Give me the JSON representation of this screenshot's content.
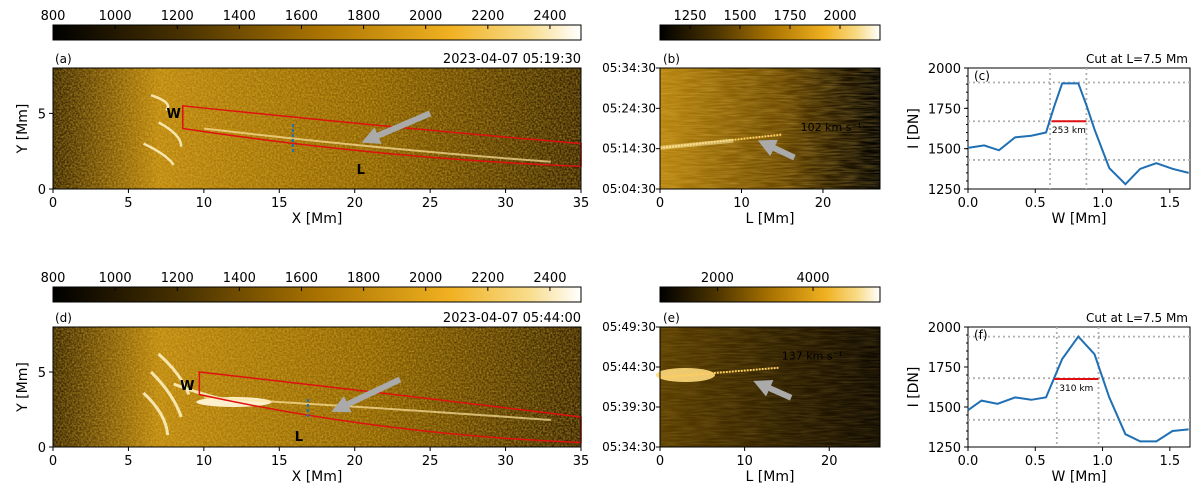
{
  "colors": {
    "red": "#e01010",
    "blue": "#1f6fb4",
    "arrow": "#aaaaaa",
    "grid": "#b0b0b0",
    "frame": "#000000"
  },
  "chart_data": [
    {
      "type": "heatmap",
      "panel": "a",
      "label": "(a)",
      "timestamp": "2023-04-07  05:19:30",
      "colorbar": {
        "ticks": [
          800,
          1000,
          1200,
          1400,
          1600,
          1800,
          2000,
          2200,
          2400
        ],
        "range": [
          800,
          2500
        ]
      },
      "xlabel": "X [Mm]",
      "ylabel": "Y [Mm]",
      "xlim": [
        0,
        35
      ],
      "ylim": [
        0,
        8
      ],
      "xticks": [
        0,
        5,
        10,
        15,
        20,
        25,
        30,
        35
      ],
      "yticks": [
        0,
        5
      ],
      "markers": {
        "w": "W",
        "l": "L"
      }
    },
    {
      "type": "heatmap",
      "panel": "b",
      "label": "(b)",
      "colorbar": {
        "ticks": [
          1250,
          1500,
          1750,
          2000
        ],
        "range": [
          1100,
          2200
        ]
      },
      "xlabel": "L [Mm]",
      "xlim": [
        0,
        27
      ],
      "xticks": [
        0,
        10,
        20
      ],
      "yticks": [
        "05:04:30",
        "05:14:30",
        "05:24:30",
        "05:34:30"
      ],
      "speed_label": "102 km s⁻¹"
    },
    {
      "type": "line",
      "panel": "c",
      "label": "(c)",
      "title": "Cut at L=7.5 Mm",
      "xlabel": "W [Mm]",
      "ylabel": "I [DN]",
      "xlim": [
        0,
        1.65
      ],
      "ylim": [
        1250,
        2000
      ],
      "xticks": [
        "0.0",
        "0.5",
        "1.0",
        "1.5"
      ],
      "yticks": [
        1250,
        1500,
        1750,
        2000
      ],
      "x": [
        0,
        0.12,
        0.23,
        0.35,
        0.47,
        0.58,
        0.64,
        0.7,
        0.82,
        0.88,
        0.94,
        1.05,
        1.17,
        1.28,
        1.4,
        1.52,
        1.64
      ],
      "y": [
        1505,
        1520,
        1490,
        1570,
        1580,
        1600,
        1760,
        1905,
        1905,
        1770,
        1620,
        1380,
        1280,
        1375,
        1410,
        1375,
        1350
      ],
      "fwhm_label": "253 km",
      "fwhm_level": 1670,
      "fwhm_x": [
        0.62,
        0.88
      ],
      "hlines": [
        1430,
        1670,
        1910
      ],
      "vlines": [
        0.61,
        0.88
      ]
    },
    {
      "type": "heatmap",
      "panel": "d",
      "label": "(d)",
      "timestamp": "2023-04-07  05:44:00",
      "colorbar": {
        "ticks": [
          800,
          1000,
          1200,
          1400,
          1600,
          1800,
          2000,
          2200,
          2400
        ],
        "range": [
          800,
          2500
        ]
      },
      "xlabel": "X [Mm]",
      "ylabel": "Y [Mm]",
      "xlim": [
        0,
        35
      ],
      "ylim": [
        0,
        8
      ],
      "xticks": [
        0,
        5,
        10,
        15,
        20,
        25,
        30,
        35
      ],
      "yticks": [
        0,
        5
      ],
      "markers": {
        "w": "W",
        "l": "L"
      }
    },
    {
      "type": "heatmap",
      "panel": "e",
      "label": "(e)",
      "colorbar": {
        "ticks": [
          2000,
          4000
        ],
        "range": [
          800,
          5400
        ]
      },
      "xlabel": "L [Mm]",
      "xlim": [
        0,
        26
      ],
      "xticks": [
        0,
        10,
        20
      ],
      "yticks": [
        "05:34:30",
        "05:39:30",
        "05:44:30",
        "05:49:30"
      ],
      "speed_label": "137 km s⁻¹"
    },
    {
      "type": "line",
      "panel": "f",
      "label": "(f)",
      "title": "Cut at L=7.5 Mm",
      "xlabel": "W [Mm]",
      "ylabel": "I [DN]",
      "xlim": [
        0,
        1.65
      ],
      "ylim": [
        1250,
        2000
      ],
      "xticks": [
        "0.0",
        "0.5",
        "1.0",
        "1.5"
      ],
      "yticks": [
        1250,
        1500,
        1750,
        2000
      ],
      "x": [
        0,
        0.1,
        0.22,
        0.35,
        0.47,
        0.58,
        0.7,
        0.82,
        0.94,
        1.05,
        1.17,
        1.28,
        1.4,
        1.52,
        1.64
      ],
      "y": [
        1480,
        1540,
        1520,
        1560,
        1545,
        1560,
        1800,
        1940,
        1830,
        1560,
        1330,
        1285,
        1285,
        1350,
        1360
      ],
      "fwhm_label": "310 km",
      "fwhm_level": 1675,
      "fwhm_x": [
        0.64,
        0.97
      ],
      "hlines": [
        1420,
        1680,
        1940
      ],
      "vlines": [
        0.66,
        0.97
      ]
    }
  ]
}
